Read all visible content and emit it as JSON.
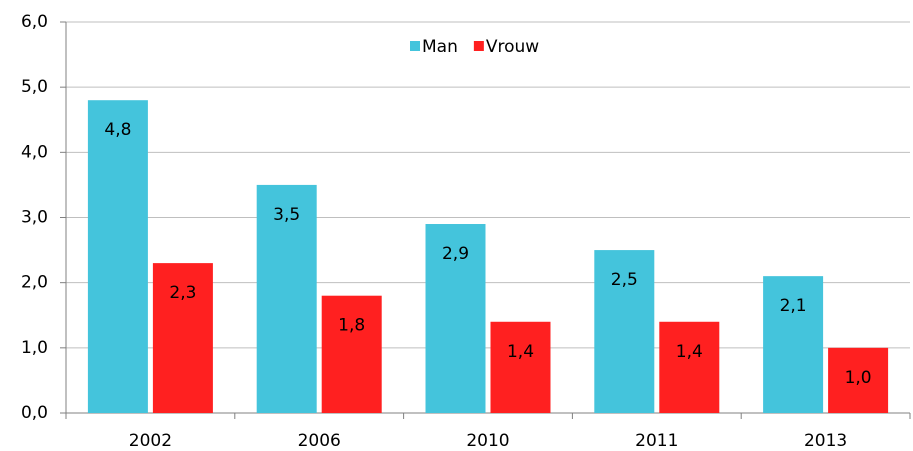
{
  "chart_data": {
    "type": "bar",
    "categories": [
      "2002",
      "2006",
      "2010",
      "2011",
      "2013"
    ],
    "series": [
      {
        "name": "Man",
        "color": "#44c4dc",
        "values": [
          4.8,
          3.5,
          2.9,
          2.5,
          2.1
        ],
        "value_labels": [
          "4,8",
          "3,5",
          "2,9",
          "2,5",
          "2,1"
        ]
      },
      {
        "name": "Vrouw",
        "color": "#ff2020",
        "values": [
          2.3,
          1.8,
          1.4,
          1.4,
          1.0
        ],
        "value_labels": [
          "2,3",
          "1,8",
          "1,4",
          "1,4",
          "1,0"
        ]
      }
    ],
    "ylim": [
      0,
      6
    ],
    "yticks": [
      {
        "value": 0,
        "label": "0,0"
      },
      {
        "value": 1,
        "label": "1,0"
      },
      {
        "value": 2,
        "label": "2,0"
      },
      {
        "value": 3,
        "label": "3,0"
      },
      {
        "value": 4,
        "label": "4,0"
      },
      {
        "value": 5,
        "label": "5,0"
      },
      {
        "value": 6,
        "label": "6,0"
      }
    ],
    "grid": true,
    "legend": "top"
  }
}
